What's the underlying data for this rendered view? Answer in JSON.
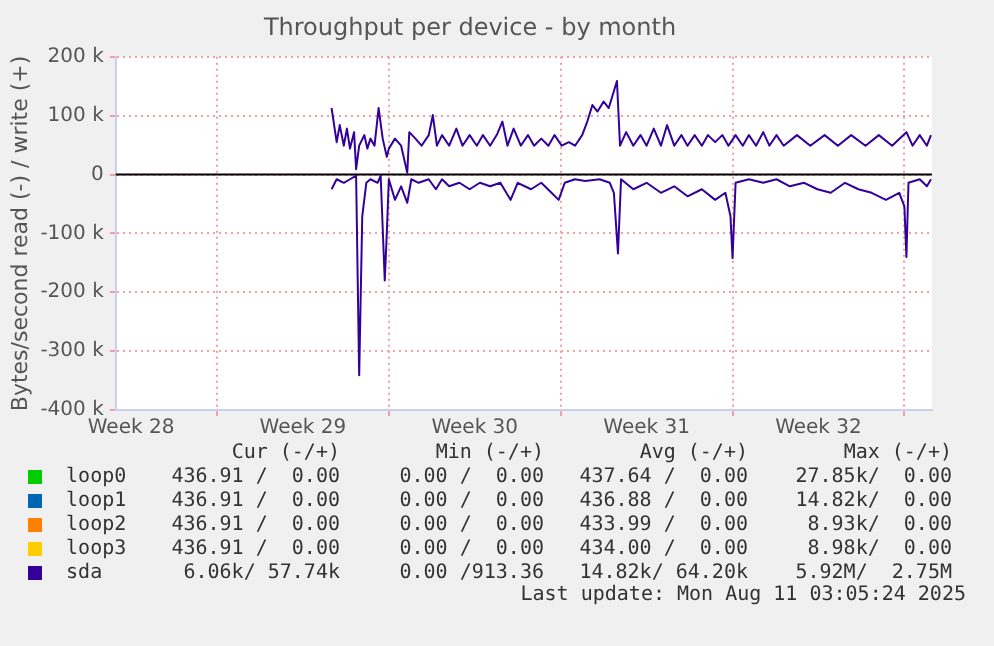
{
  "chart_data": {
    "type": "line",
    "title": "Throughput per device - by month",
    "ylabel": "Bytes/second read (-) / write (+)",
    "xlim": [
      "2025-07-08T21:00",
      "2025-08-11T03:00"
    ],
    "xticks": [
      {
        "value": "2025-07-09T12:00",
        "label": "Week 28"
      },
      {
        "value": "2025-07-13T00:00",
        "label": null
      },
      {
        "value": "2025-07-16T12:00",
        "label": "Week 29"
      },
      {
        "value": "2025-07-20T00:00",
        "label": null
      },
      {
        "value": "2025-07-23T12:00",
        "label": "Week 30"
      },
      {
        "value": "2025-07-27T00:00",
        "label": null
      },
      {
        "value": "2025-07-30T12:00",
        "label": "Week 31"
      },
      {
        "value": "2025-08-03T00:00",
        "label": null
      },
      {
        "value": "2025-08-06T12:00",
        "label": "Week 32"
      },
      {
        "value": "2025-08-10T00:00",
        "label": null
      }
    ],
    "ylim": [
      -400000,
      200000
    ],
    "yticks": [
      {
        "value": -400000,
        "label": "-400 k"
      },
      {
        "value": -300000,
        "label": "-300 k"
      },
      {
        "value": -200000,
        "label": "-200 k"
      },
      {
        "value": -100000,
        "label": "-100 k"
      },
      0,
      {
        "value": 100000,
        "label": "100 k"
      },
      {
        "value": 200000,
        "label": "200 k"
      }
    ],
    "grid": true,
    "legend": "bottom",
    "marker": "none",
    "line_style": "solid",
    "ref_lines": [
      {
        "axis": "y",
        "value": 0,
        "color": "#000000"
      }
    ],
    "annotations": [
      "Cur (-/+)",
      "Min (-/+)",
      "Avg (-/+)",
      "Max (-/+)",
      "436.91 /  0.00",
      "0.00 /  0.00",
      "437.64 /  0.00",
      "27.85k/  0.00",
      "436.91 /  0.00",
      "0.00 /  0.00",
      "436.88 /  0.00",
      "14.82k/  0.00",
      "436.91 /  0.00",
      "0.00 /  0.00",
      "433.99 /  0.00",
      "8.93k/  0.00",
      "436.91 /  0.00",
      "0.00 /  0.00",
      "434.00 /  0.00",
      "8.98k/  0.00",
      "6.06k/ 57.74k",
      "0.00 /913.36",
      "14.82k/ 64.20k",
      "5.92M/  2.75M",
      "Last update: Mon Aug 11 03:05:24 2025"
    ],
    "series": [
      {
        "name": "loop0",
        "color": "#00cc00"
      },
      {
        "name": "loop1",
        "color": "#0066b3"
      },
      {
        "name": "loop2",
        "color": "#ff8000"
      },
      {
        "name": "loop3",
        "color": "#ffcc00"
      },
      {
        "name": "sda",
        "color": "#330099",
        "x": [
          "2025-07-17T16:00",
          "2025-07-17T21:00",
          "2025-07-18T00:00",
          "2025-07-18T04:00",
          "2025-07-18T07:00",
          "2025-07-18T10:00",
          "2025-07-18T14:00",
          "2025-07-18T16:00",
          "2025-07-18T19:00",
          "2025-07-19T00:00",
          "2025-07-19T03:00",
          "2025-07-19T06:00",
          "2025-07-19T10:00",
          "2025-07-19T14:00",
          "2025-07-19T18:00",
          "2025-07-19T22:00",
          "2025-07-20T00:00",
          "2025-07-20T06:00",
          "2025-07-20T12:00",
          "2025-07-20T18:00",
          "2025-07-20T20:00",
          "2025-07-21T02:00",
          "2025-07-21T08:00",
          "2025-07-21T15:00",
          "2025-07-21T19:00",
          "2025-07-21T23:00",
          "2025-07-22T04:00",
          "2025-07-22T11:00",
          "2025-07-22T18:00",
          "2025-07-23T00:00",
          "2025-07-23T07:00",
          "2025-07-23T14:00",
          "2025-07-23T20:00",
          "2025-07-24T03:00",
          "2025-07-24T10:00",
          "2025-07-24T15:00",
          "2025-07-24T20:00",
          "2025-07-25T02:00",
          "2025-07-25T09:00",
          "2025-07-25T16:00",
          "2025-07-25T22:00",
          "2025-07-26T05:00",
          "2025-07-26T12:00",
          "2025-07-26T18:00",
          "2025-07-27T01:00",
          "2025-07-27T08:00",
          "2025-07-27T14:00",
          "2025-07-27T21:00",
          "2025-07-28T02:00",
          "2025-07-28T07:00",
          "2025-07-28T12:00",
          "2025-07-28T18:00",
          "2025-07-28T23:00",
          "2025-07-29T03:00",
          "2025-07-29T07:00",
          "2025-07-29T10:00",
          "2025-07-29T16:00",
          "2025-07-29T23:00",
          "2025-07-30T06:00",
          "2025-07-30T12:00",
          "2025-07-30T19:00",
          "2025-07-31T02:00",
          "2025-07-31T08:00",
          "2025-07-31T15:00",
          "2025-07-31T22:00",
          "2025-08-01T04:00",
          "2025-08-01T11:00",
          "2025-08-01T18:00",
          "2025-08-02T00:00",
          "2025-08-02T07:00",
          "2025-08-02T14:00",
          "2025-08-02T20:00",
          "2025-08-03T03:00",
          "2025-08-03T10:00",
          "2025-08-03T16:00",
          "2025-08-03T23:00",
          "2025-08-04T06:00",
          "2025-08-04T12:00",
          "2025-08-04T19:00",
          "2025-08-05T02:00",
          "2025-08-05T15:00",
          "2025-08-06T04:00",
          "2025-08-06T18:00",
          "2025-08-07T07:00",
          "2025-08-07T20:00",
          "2025-08-08T10:00",
          "2025-08-08T23:00",
          "2025-08-09T12:00",
          "2025-08-10T02:00",
          "2025-08-10T08:00",
          "2025-08-10T15:00",
          "2025-08-10T22:00",
          "2025-08-11T02:00"
        ],
        "values": [
          113000,
          55000,
          84000,
          49000,
          78000,
          44000,
          72000,
          9000,
          49000,
          67000,
          44000,
          61000,
          49000,
          113000,
          61000,
          30000,
          44000,
          61000,
          49000,
          3000,
          72000,
          61000,
          49000,
          67000,
          101000,
          49000,
          67000,
          49000,
          78000,
          49000,
          67000,
          49000,
          67000,
          49000,
          69000,
          90000,
          49000,
          78000,
          49000,
          67000,
          49000,
          61000,
          49000,
          67000,
          49000,
          55000,
          49000,
          67000,
          90000,
          118000,
          107000,
          124000,
          113000,
          136000,
          159000,
          49000,
          72000,
          49000,
          67000,
          49000,
          78000,
          49000,
          84000,
          49000,
          67000,
          49000,
          67000,
          49000,
          67000,
          55000,
          67000,
          49000,
          67000,
          49000,
          67000,
          49000,
          72000,
          49000,
          67000,
          49000,
          67000,
          49000,
          67000,
          49000,
          67000,
          49000,
          67000,
          49000,
          72000,
          49000,
          67000,
          49000,
          67000
        ]
      },
      {
        "color": "#330099",
        "x": [
          "2025-07-17T16:00",
          "2025-07-17T21:00",
          "2025-07-18T04:00",
          "2025-07-18T10:00",
          "2025-07-18T16:00",
          "2025-07-18T19:00",
          "2025-07-18T22:00",
          "2025-07-19T02:00",
          "2025-07-19T06:00",
          "2025-07-19T13:00",
          "2025-07-19T16:00",
          "2025-07-19T20:00",
          "2025-07-19T22:00",
          "2025-07-20T00:00",
          "2025-07-20T06:00",
          "2025-07-20T12:00",
          "2025-07-20T18:00",
          "2025-07-20T22:00",
          "2025-07-21T05:00",
          "2025-07-21T15:00",
          "2025-07-21T22:00",
          "2025-07-22T04:00",
          "2025-07-22T11:00",
          "2025-07-22T21:00",
          "2025-07-23T07:00",
          "2025-07-23T17:00",
          "2025-07-24T03:00",
          "2025-07-24T13:00",
          "2025-07-24T23:00",
          "2025-07-25T06:00",
          "2025-07-25T19:00",
          "2025-07-26T05:00",
          "2025-07-26T15:00",
          "2025-07-26T22:00",
          "2025-07-27T04:00",
          "2025-07-27T14:00",
          "2025-07-28T00:00",
          "2025-07-28T14:00",
          "2025-07-29T00:00",
          "2025-07-29T04:00",
          "2025-07-29T08:00",
          "2025-07-29T11:00",
          "2025-07-29T23:00",
          "2025-07-30T12:00",
          "2025-07-31T02:00",
          "2025-07-31T15:00",
          "2025-08-01T04:00",
          "2025-08-01T18:00",
          "2025-08-02T07:00",
          "2025-08-02T17:00",
          "2025-08-02T22:00",
          "2025-08-03T00:00",
          "2025-08-03T03:00",
          "2025-08-03T16:00",
          "2025-08-04T06:00",
          "2025-08-04T19:00",
          "2025-08-05T08:00",
          "2025-08-05T22:00",
          "2025-08-06T11:00",
          "2025-08-07T00:00",
          "2025-08-07T14:00",
          "2025-08-08T03:00",
          "2025-08-08T16:00",
          "2025-08-09T06:00",
          "2025-08-09T19:00",
          "2025-08-10T00:00",
          "2025-08-10T02:00",
          "2025-08-10T04:00",
          "2025-08-10T15:00",
          "2025-08-10T22:00",
          "2025-08-11T02:00"
        ],
        "values": [
          -25000,
          -8000,
          -14000,
          -8000,
          -2000,
          -341000,
          -71000,
          -14000,
          -8000,
          -14000,
          -2000,
          -180000,
          -100000,
          -8000,
          -43000,
          -20000,
          -48000,
          -8000,
          -14000,
          -8000,
          -25000,
          -8000,
          -20000,
          -14000,
          -25000,
          -14000,
          -20000,
          -14000,
          -43000,
          -14000,
          -25000,
          -14000,
          -31000,
          -43000,
          -14000,
          -8000,
          -11000,
          -8000,
          -14000,
          -31000,
          -134000,
          -8000,
          -25000,
          -14000,
          -31000,
          -20000,
          -37000,
          -25000,
          -43000,
          -31000,
          -71000,
          -142000,
          -14000,
          -8000,
          -14000,
          -8000,
          -20000,
          -14000,
          -25000,
          -31000,
          -14000,
          -25000,
          -31000,
          -43000,
          -31000,
          -54000,
          -140000,
          -14000,
          -8000,
          -20000,
          -8000
        ]
      }
    ]
  }
}
